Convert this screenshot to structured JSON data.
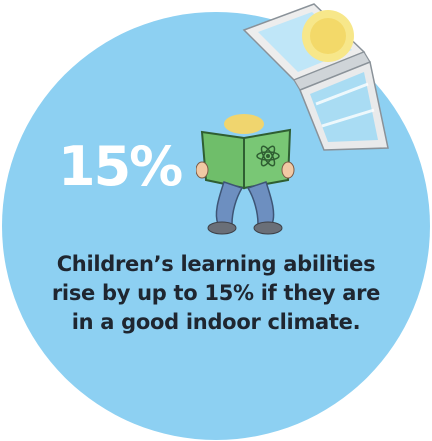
{
  "infographic": {
    "stat": "15%",
    "caption_lines": [
      "Children’s learning abilities",
      "rise by up to 15% if they are",
      "in a good indoor climate."
    ],
    "icons": {
      "window": "roof-window-icon",
      "reader": "child-reading-book-icon",
      "atom": "atom-icon"
    }
  },
  "colors": {
    "circle": "#8dd0f2",
    "stat_text": "#ffffff",
    "caption_text": "#1f2630",
    "book_green": "#6fbe6a",
    "window_frame": "#f2f2f2",
    "sun": "#f7e78a",
    "hair": "#f0d56e",
    "jeans": "#6d8fc0",
    "shoe": "#6a6f78"
  }
}
